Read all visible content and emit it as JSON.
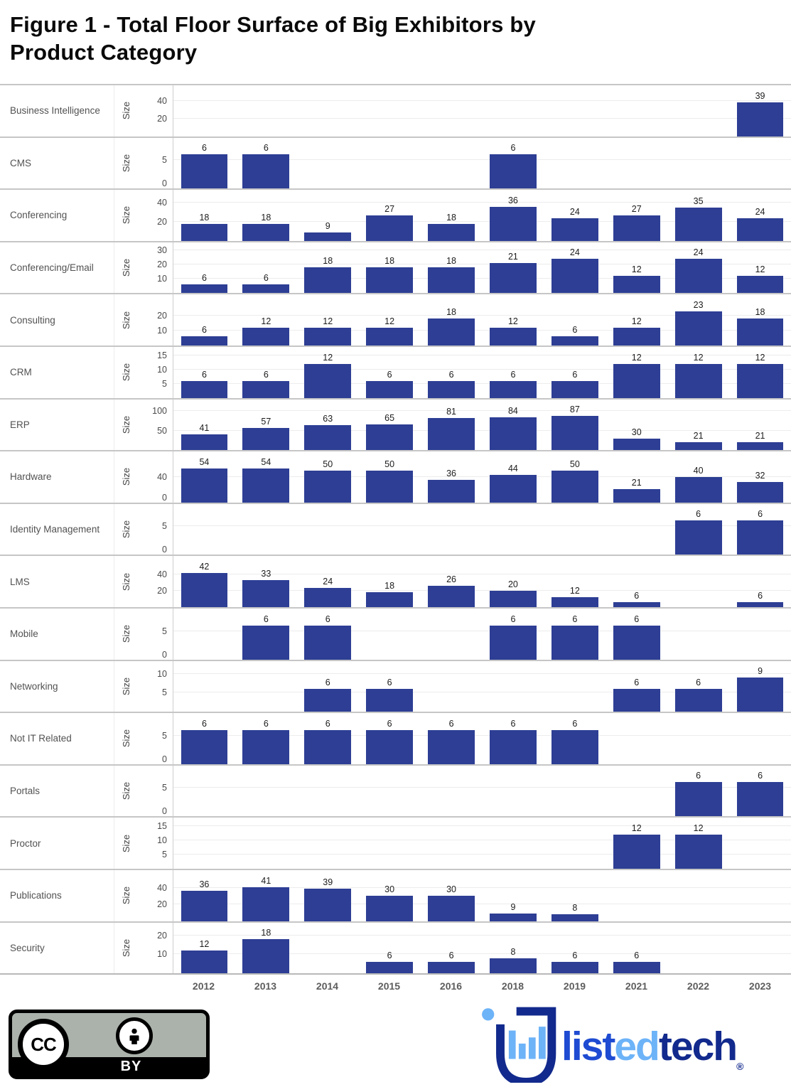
{
  "header": {
    "title_line1": "Figure 1 - Total Floor Surface of Big Exhibitors by",
    "title_line2": "Product Category"
  },
  "colors": {
    "bar": "#2d3e94",
    "separator": "#c6c6c6",
    "gridline": "#ececec",
    "axis_line": "#cfcfcf",
    "category_label": "#525252",
    "tick_label": "#4a4a4a",
    "value_label": "#1c1c1c",
    "year_label": "#5d5d5d",
    "cc_badge_bg": "#abb2ab",
    "logo_blue": "#1e4bd2",
    "logo_light_blue": "#6db3f8",
    "logo_navy": "#122a8d"
  },
  "chart_data": {
    "type": "bar",
    "title": "Figure 1 - Total Floor Surface of Big Exhibitors by Product Category",
    "facet_field": "Product Category",
    "xlabel": "",
    "ylabel": "Size",
    "grid": true,
    "legend": false,
    "x": [
      "2012",
      "2013",
      "2014",
      "2015",
      "2016",
      "2018",
      "2019",
      "2021",
      "2022",
      "2023"
    ],
    "facets": [
      {
        "category": "Business Intelligence",
        "yticks": [
          20,
          40
        ],
        "values": [
          null,
          null,
          null,
          null,
          null,
          null,
          null,
          null,
          null,
          39
        ]
      },
      {
        "category": "CMS",
        "yticks": [
          0,
          5
        ],
        "values": [
          6,
          6,
          null,
          null,
          null,
          6,
          null,
          null,
          null,
          null
        ]
      },
      {
        "category": "Conferencing",
        "yticks": [
          20,
          40
        ],
        "values": [
          18,
          18,
          9,
          27,
          18,
          36,
          24,
          27,
          35,
          24
        ]
      },
      {
        "category": "Conferencing/Email",
        "yticks": [
          10,
          20,
          30
        ],
        "values": [
          6,
          6,
          18,
          18,
          18,
          21,
          24,
          12,
          24,
          12
        ]
      },
      {
        "category": "Consulting",
        "yticks": [
          10,
          20
        ],
        "values": [
          6,
          12,
          12,
          12,
          18,
          12,
          6,
          12,
          23,
          18
        ]
      },
      {
        "category": "CRM",
        "yticks": [
          5,
          10,
          15
        ],
        "values": [
          6,
          6,
          12,
          6,
          6,
          6,
          6,
          12,
          12,
          12
        ]
      },
      {
        "category": "ERP",
        "yticks": [
          50,
          100
        ],
        "values": [
          41,
          57,
          63,
          65,
          81,
          84,
          87,
          30,
          21,
          21
        ]
      },
      {
        "category": "Hardware",
        "yticks": [
          0,
          40
        ],
        "values": [
          54,
          54,
          50,
          50,
          36,
          44,
          50,
          21,
          40,
          32
        ]
      },
      {
        "category": "Identity Management",
        "yticks": [
          0,
          5
        ],
        "values": [
          null,
          null,
          null,
          null,
          null,
          null,
          null,
          null,
          6,
          6
        ]
      },
      {
        "category": "LMS",
        "yticks": [
          20,
          40
        ],
        "values": [
          42,
          33,
          24,
          18,
          26,
          20,
          12,
          6,
          null,
          6
        ]
      },
      {
        "category": "Mobile",
        "yticks": [
          0,
          5
        ],
        "values": [
          null,
          6,
          6,
          null,
          null,
          6,
          6,
          6,
          null,
          null
        ]
      },
      {
        "category": "Networking",
        "yticks": [
          5,
          10
        ],
        "values": [
          null,
          null,
          6,
          6,
          null,
          null,
          null,
          6,
          6,
          9
        ]
      },
      {
        "category": "Not IT Related",
        "yticks": [
          0,
          5
        ],
        "values": [
          6,
          6,
          6,
          6,
          6,
          6,
          6,
          null,
          null,
          null
        ]
      },
      {
        "category": "Portals",
        "yticks": [
          0,
          5
        ],
        "values": [
          null,
          null,
          null,
          null,
          null,
          null,
          null,
          null,
          6,
          6
        ]
      },
      {
        "category": "Proctor",
        "yticks": [
          5,
          10,
          15
        ],
        "values": [
          null,
          null,
          null,
          null,
          null,
          null,
          null,
          12,
          12,
          null
        ]
      },
      {
        "category": "Publications",
        "yticks": [
          20,
          40
        ],
        "values": [
          36,
          41,
          39,
          30,
          30,
          9,
          8,
          null,
          null,
          null
        ]
      },
      {
        "category": "Security",
        "yticks": [
          10,
          20
        ],
        "values": [
          12,
          18,
          null,
          6,
          6,
          8,
          6,
          6,
          null,
          null
        ]
      }
    ]
  },
  "footer": {
    "license_badge": {
      "cc": "CC",
      "by": "BY"
    },
    "logo": {
      "parts": [
        {
          "text": "list",
          "color": "#1e4bd2"
        },
        {
          "text": "ed",
          "color": "#6db3f8"
        },
        {
          "text": "tech",
          "color": "#122a8d"
        }
      ],
      "registered": "®"
    }
  }
}
